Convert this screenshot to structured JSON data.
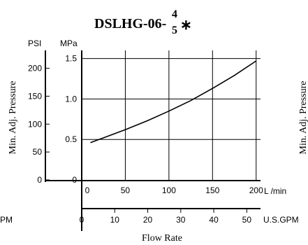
{
  "chart_data": {
    "type": "line",
    "title": {
      "main": "DSLHG-06-",
      "fraction_top": "4",
      "fraction_bottom": "5",
      "suffix": "∗"
    },
    "ylabel": "Min. Adj. Pressure",
    "ylabel_right": "Min. Adj. Pressure",
    "xlabel": "Flow Rate",
    "y_primary": {
      "unit": "MPa",
      "ylim": [
        0,
        1.6
      ],
      "ticks": [
        0,
        0.5,
        1.0,
        1.5
      ],
      "tick_labels": [
        "0",
        "0.5",
        "1.0",
        "1.5"
      ]
    },
    "y_secondary": {
      "unit": "PSI",
      "ticks": [
        0,
        50,
        100,
        150,
        200
      ],
      "tick_labels": [
        "0",
        "50",
        "100",
        "150",
        "200"
      ]
    },
    "x_primary": {
      "unit": "L /min",
      "xlim": [
        0,
        205
      ],
      "ticks": [
        0,
        50,
        100,
        150,
        200
      ],
      "tick_labels": [
        "0",
        "50",
        "100",
        "150",
        "200"
      ]
    },
    "x_secondary": {
      "unit": "U.S.GPM",
      "left_fragment": "PM",
      "ticks": [
        0,
        10,
        20,
        30,
        40,
        50
      ],
      "tick_labels": [
        "0",
        "10",
        "20",
        "30",
        "40",
        "50"
      ]
    },
    "grid": true,
    "series": [
      {
        "x": [
          10,
          25,
          50,
          75,
          100,
          125,
          150,
          175,
          200
        ],
        "y": [
          0.46,
          0.52,
          0.62,
          0.73,
          0.85,
          0.98,
          1.13,
          1.29,
          1.47
        ]
      }
    ]
  }
}
